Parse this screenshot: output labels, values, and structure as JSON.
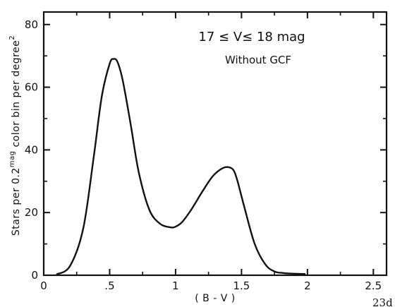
{
  "chart_data": {
    "type": "line",
    "title": "",
    "xlabel": "( B - V )",
    "ylabel": "Stars per 0.2^mag color bin per degree^2",
    "ylabel_parts": {
      "main": "Stars per 0.2",
      "sup1": "mag",
      "mid": " color bin per degree",
      "sup2": "2"
    },
    "xlim": [
      0,
      2.6
    ],
    "ylim": [
      0,
      84
    ],
    "xticks": [
      0,
      0.5,
      1,
      1.5,
      2,
      2.5
    ],
    "xtick_labels": [
      "0",
      ".5",
      "1",
      "1.5",
      "2",
      "2.5"
    ],
    "yticks": [
      0,
      20,
      40,
      60,
      80
    ],
    "ytick_labels": [
      "0",
      "20",
      "40",
      "60",
      "80"
    ],
    "grid": false,
    "annotations": [
      "17 ≤ V ≤ 18 mag",
      "Without GCF"
    ],
    "series": [
      {
        "x": [
          0.1,
          0.2,
          0.3,
          0.38,
          0.44,
          0.5,
          0.53,
          0.56,
          0.6,
          0.66,
          0.72,
          0.8,
          0.88,
          0.96,
          1.0,
          1.05,
          1.12,
          1.2,
          1.28,
          1.35,
          1.4,
          1.44,
          1.47,
          1.52,
          1.6,
          1.68,
          1.75,
          1.82,
          1.9,
          1.98
        ],
        "y": [
          0.3,
          3,
          15,
          38,
          57,
          67.5,
          69,
          68,
          62,
          48,
          33,
          21,
          16.5,
          15.3,
          15.5,
          17,
          21,
          26.5,
          31.5,
          34,
          34.5,
          33.5,
          30,
          22,
          10,
          3.5,
          1.2,
          0.7,
          0.5,
          0.4
        ]
      }
    ]
  },
  "annotation_top": "17 ≤ V≤ 18 mag",
  "annotation_bottom": "Without GCF",
  "page_mark": "23d"
}
